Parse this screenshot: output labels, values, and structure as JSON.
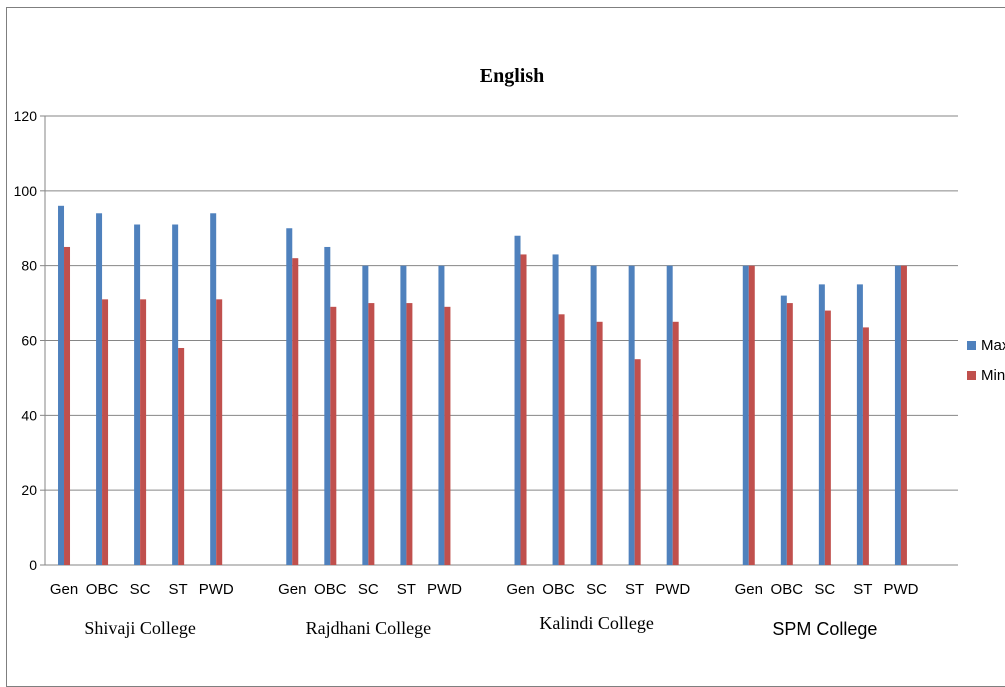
{
  "chart_data": {
    "type": "bar",
    "title": "English",
    "groups": [
      "Shivaji College",
      "Rajdhani College",
      "Kalindi College",
      "SPM College"
    ],
    "categories": [
      "Gen",
      "OBC",
      "SC",
      "ST",
      "PWD"
    ],
    "series": [
      {
        "name": "Max",
        "color": "#4f81bd",
        "values": [
          [
            96,
            94,
            91,
            91,
            94
          ],
          [
            90,
            85,
            80,
            80,
            80
          ],
          [
            88,
            83,
            80,
            80,
            80
          ],
          [
            80,
            72,
            75,
            75,
            80
          ]
        ]
      },
      {
        "name": "Min",
        "color": "#c0504d",
        "values": [
          [
            85,
            71,
            71,
            58,
            71
          ],
          [
            82,
            69,
            70,
            70,
            69
          ],
          [
            83,
            67,
            65,
            55,
            65
          ],
          [
            80,
            70,
            68,
            63.5,
            80
          ]
        ]
      }
    ],
    "ylim": [
      0,
      120
    ],
    "yticks": [
      "0",
      "20",
      "40",
      "60",
      "80",
      "100",
      "120"
    ],
    "grid": true,
    "legend": "right"
  }
}
